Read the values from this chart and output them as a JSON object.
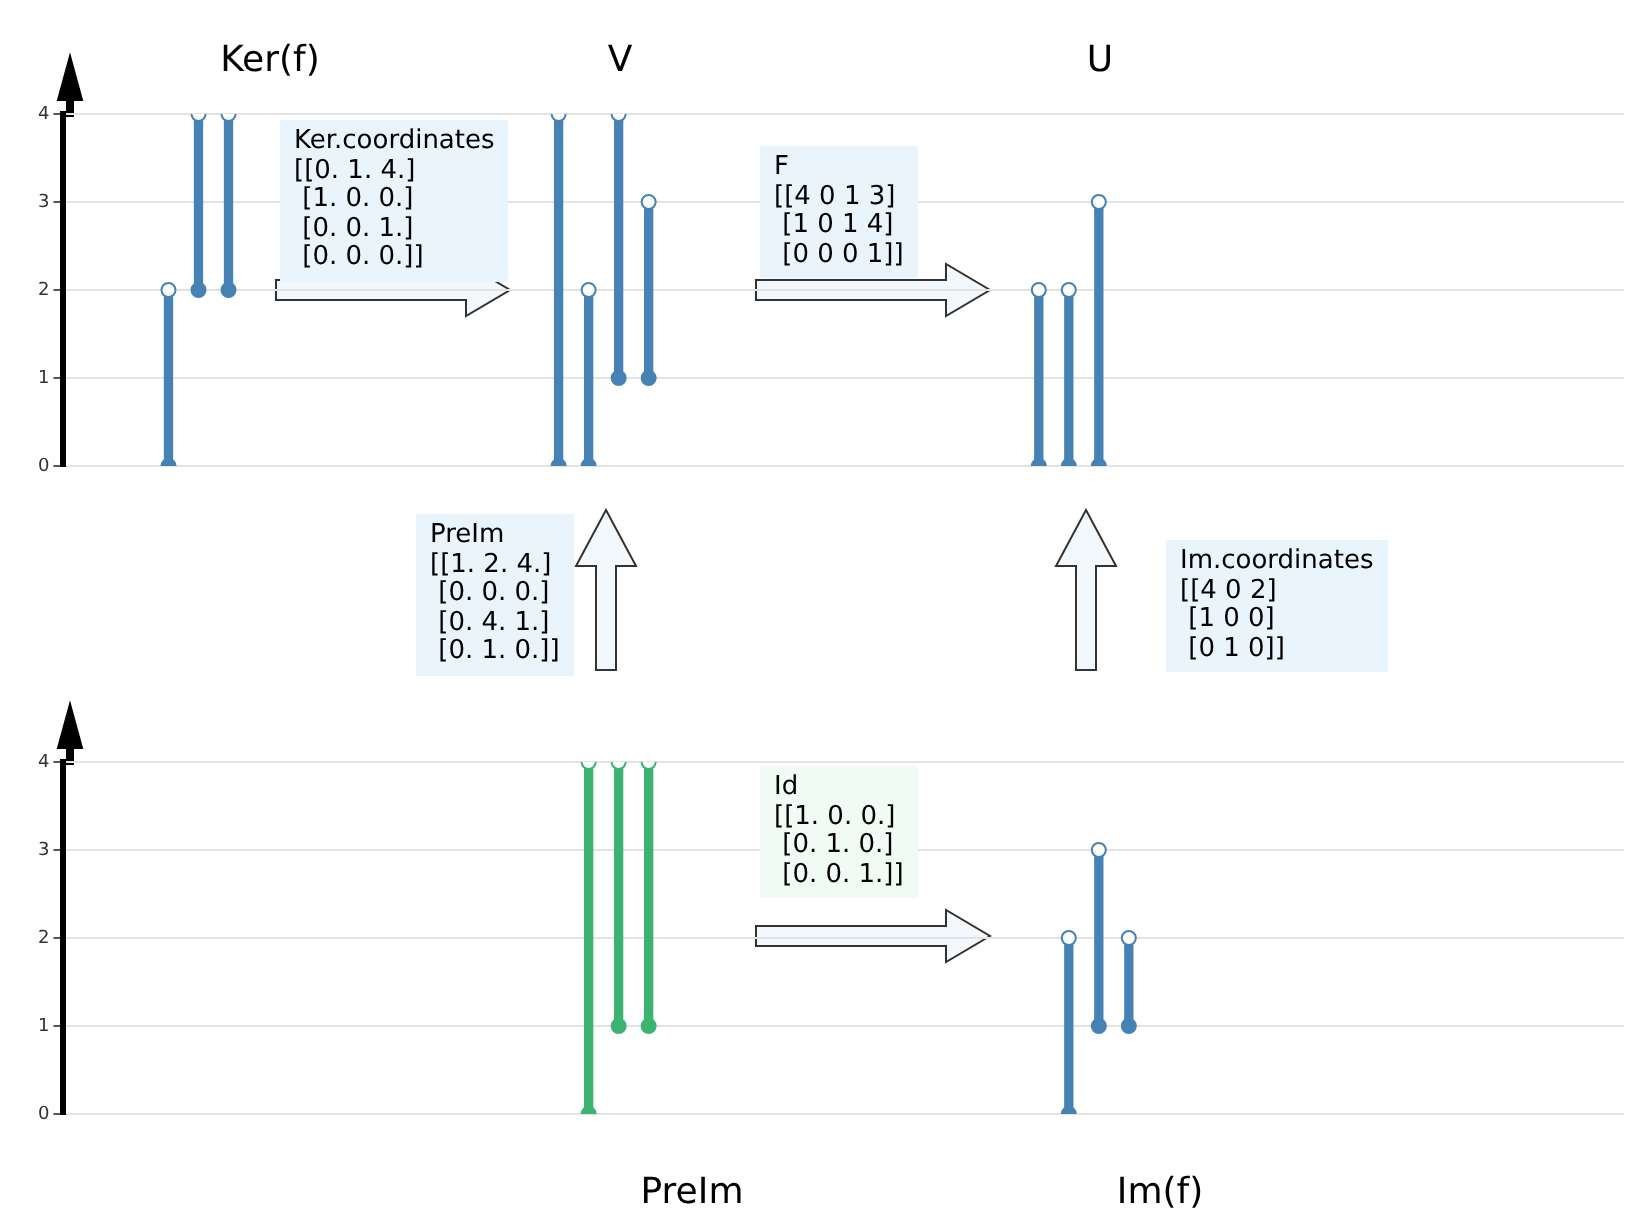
{
  "chart_data": [
    {
      "type": "bar",
      "annotations": [
        "Ker(f)",
        "V",
        "U",
        "Ker.coordinates\n[[0. 1. 4.]\n [1. 0. 0.]\n [0. 0. 1.]\n [0. 0. 0.]]",
        "F\n[[4 0 1 3]\n [1 0 1 4]\n [0 0 0 1]]"
      ],
      "categories": [
        null,
        null,
        null,
        null,
        null,
        null,
        null,
        null,
        null,
        null,
        null,
        null,
        null,
        null,
        null,
        null,
        null,
        null,
        null,
        null,
        null,
        null,
        null,
        null,
        null,
        null,
        null,
        null,
        null,
        null,
        null,
        null,
        null,
        null,
        null,
        null,
        null,
        null,
        null,
        null,
        null,
        null,
        null,
        null,
        null,
        null,
        null,
        null,
        null,
        null,
        null,
        null
      ],
      "series": [
        {
          "type": "bar",
          "color": "#4682b4",
          "values": [
            null,
            null,
            null,
            2,
            2,
            2,
            null,
            null,
            null,
            null,
            null,
            null,
            null,
            null,
            null,
            null,
            4,
            2,
            3,
            2,
            null,
            null,
            null,
            null,
            null,
            null,
            null,
            null,
            null,
            null,
            null,
            null,
            2,
            2,
            3,
            null,
            null,
            null,
            null,
            null,
            null,
            null,
            null,
            null,
            null,
            null,
            null,
            null,
            null,
            null,
            null,
            null
          ],
          "base": [
            null,
            null,
            null,
            0,
            2,
            2,
            null,
            null,
            null,
            null,
            null,
            null,
            null,
            null,
            null,
            null,
            0,
            0,
            1,
            1,
            null,
            null,
            null,
            null,
            null,
            null,
            null,
            null,
            null,
            null,
            null,
            null,
            0,
            0,
            0,
            null,
            null,
            null,
            null,
            null,
            null,
            null,
            null,
            null,
            null,
            null,
            null,
            null,
            null,
            null,
            null,
            null
          ]
        },
        {
          "type": "scatter",
          "color": "#4682b4",
          "values": [
            null,
            null,
            null,
            0,
            2,
            2,
            null,
            null,
            null,
            null,
            null,
            null,
            null,
            null,
            null,
            null,
            0,
            0,
            1,
            1,
            null,
            null,
            null,
            null,
            null,
            null,
            null,
            null,
            null,
            null,
            null,
            null,
            0,
            0,
            0,
            null,
            null,
            null,
            null,
            null,
            null,
            null,
            null,
            null,
            null,
            null,
            null,
            null,
            null,
            null,
            null,
            null
          ]
        },
        {
          "type": "scatter",
          "color": "#ffffff",
          "values": [
            null,
            null,
            null,
            2,
            4,
            4,
            null,
            null,
            null,
            null,
            null,
            null,
            null,
            null,
            null,
            null,
            4,
            2,
            4,
            3,
            null,
            null,
            null,
            null,
            null,
            null,
            null,
            null,
            null,
            null,
            null,
            null,
            2,
            2,
            3,
            null,
            null,
            null,
            null,
            null,
            null,
            null,
            null,
            null,
            null,
            null,
            null,
            null,
            null,
            null,
            null,
            null
          ]
        }
      ],
      "marker": "circle",
      "ylim": [
        0,
        4
      ],
      "yticks": [
        0,
        1,
        2,
        3,
        4
      ],
      "grid": "y",
      "tick_labels": "y"
    },
    {
      "type": "bar",
      "annotations": [
        "PreIm\n[[1. 2. 4.]\n [0. 0. 0.]\n [0. 4. 1.]\n [0. 1. 0.]]",
        "Im.coordinates\n[[4 0 2]\n [1 0 0]\n [0 1 0]]",
        "Id\n[[1. 0. 0.]\n [0. 1. 0.]\n [0. 0. 1.]]",
        "PreIm",
        "Im(f)"
      ],
      "categories": [
        null,
        null,
        null,
        null,
        null,
        null,
        null,
        null,
        null,
        null,
        null,
        null,
        null,
        null,
        null,
        null,
        null,
        null,
        null,
        null,
        null,
        null,
        null,
        null,
        null,
        null,
        null,
        null,
        null,
        null,
        null,
        null,
        null,
        null,
        null,
        null,
        null,
        null,
        null,
        null,
        null,
        null,
        null,
        null,
        null,
        null,
        null,
        null,
        null,
        null,
        null,
        null
      ],
      "series": [
        {
          "type": "bar",
          "colors": [
            null,
            null,
            null,
            null,
            null,
            null,
            null,
            null,
            null,
            null,
            null,
            null,
            null,
            null,
            null,
            null,
            null,
            "#3cb371",
            "#3cb371",
            "#3cb371",
            null,
            null,
            null,
            null,
            null,
            null,
            null,
            null,
            null,
            null,
            null,
            null,
            null,
            "#4682b4",
            "#4682b4",
            "#4682b4",
            null,
            null,
            null,
            null,
            null,
            null,
            null,
            null,
            null,
            null,
            null,
            null,
            null,
            null,
            null,
            null
          ],
          "values": [
            null,
            null,
            null,
            null,
            null,
            null,
            null,
            null,
            null,
            null,
            null,
            null,
            null,
            null,
            null,
            null,
            null,
            4,
            3,
            3,
            null,
            null,
            null,
            null,
            null,
            null,
            null,
            null,
            null,
            null,
            null,
            null,
            null,
            2,
            2,
            1,
            null,
            null,
            null,
            null,
            null,
            null,
            null,
            null,
            null,
            null,
            null,
            null,
            null,
            null,
            null,
            null
          ],
          "base": [
            null,
            null,
            null,
            null,
            null,
            null,
            null,
            null,
            null,
            null,
            null,
            null,
            null,
            null,
            null,
            null,
            null,
            0,
            1,
            1,
            null,
            null,
            null,
            null,
            null,
            null,
            null,
            null,
            null,
            null,
            null,
            null,
            null,
            0,
            1,
            1,
            null,
            null,
            null,
            null,
            null,
            null,
            null,
            null,
            null,
            null,
            null,
            null,
            null,
            null,
            null,
            null
          ]
        },
        {
          "type": "scatter",
          "colors": [
            null,
            null,
            null,
            null,
            null,
            null,
            null,
            null,
            null,
            null,
            null,
            null,
            null,
            null,
            null,
            null,
            null,
            "#3cb371",
            "#3cb371",
            "#3cb371",
            null,
            null,
            null,
            null,
            null,
            null,
            null,
            null,
            null,
            null,
            null,
            null,
            null,
            "#4682b4",
            "#4682b4",
            "#4682b4",
            null,
            null,
            null,
            null,
            null,
            null,
            null,
            null,
            null,
            null,
            null,
            null,
            null,
            null,
            null,
            null
          ],
          "values": [
            null,
            null,
            null,
            null,
            null,
            null,
            null,
            null,
            null,
            null,
            null,
            null,
            null,
            null,
            null,
            null,
            null,
            0,
            1,
            1,
            null,
            null,
            null,
            null,
            null,
            null,
            null,
            null,
            null,
            null,
            null,
            null,
            null,
            0,
            1,
            1,
            null,
            null,
            null,
            null,
            null,
            null,
            null,
            null,
            null,
            null,
            null,
            null,
            null,
            null,
            null,
            null
          ]
        },
        {
          "type": "scatter",
          "color": "#ffffff",
          "values": [
            null,
            null,
            null,
            null,
            null,
            null,
            null,
            null,
            null,
            null,
            null,
            null,
            null,
            null,
            null,
            null,
            null,
            4,
            4,
            4,
            null,
            null,
            null,
            null,
            null,
            null,
            null,
            null,
            null,
            null,
            null,
            null,
            null,
            2,
            3,
            2,
            null,
            null,
            null,
            null,
            null,
            null,
            null,
            null,
            null,
            null,
            null,
            null,
            null,
            null,
            null,
            null
          ]
        }
      ],
      "marker": "circle",
      "ylim": [
        0,
        4
      ],
      "yticks": [
        0,
        1,
        2,
        3,
        4
      ],
      "grid": "y",
      "tick_labels": "y"
    }
  ]
}
